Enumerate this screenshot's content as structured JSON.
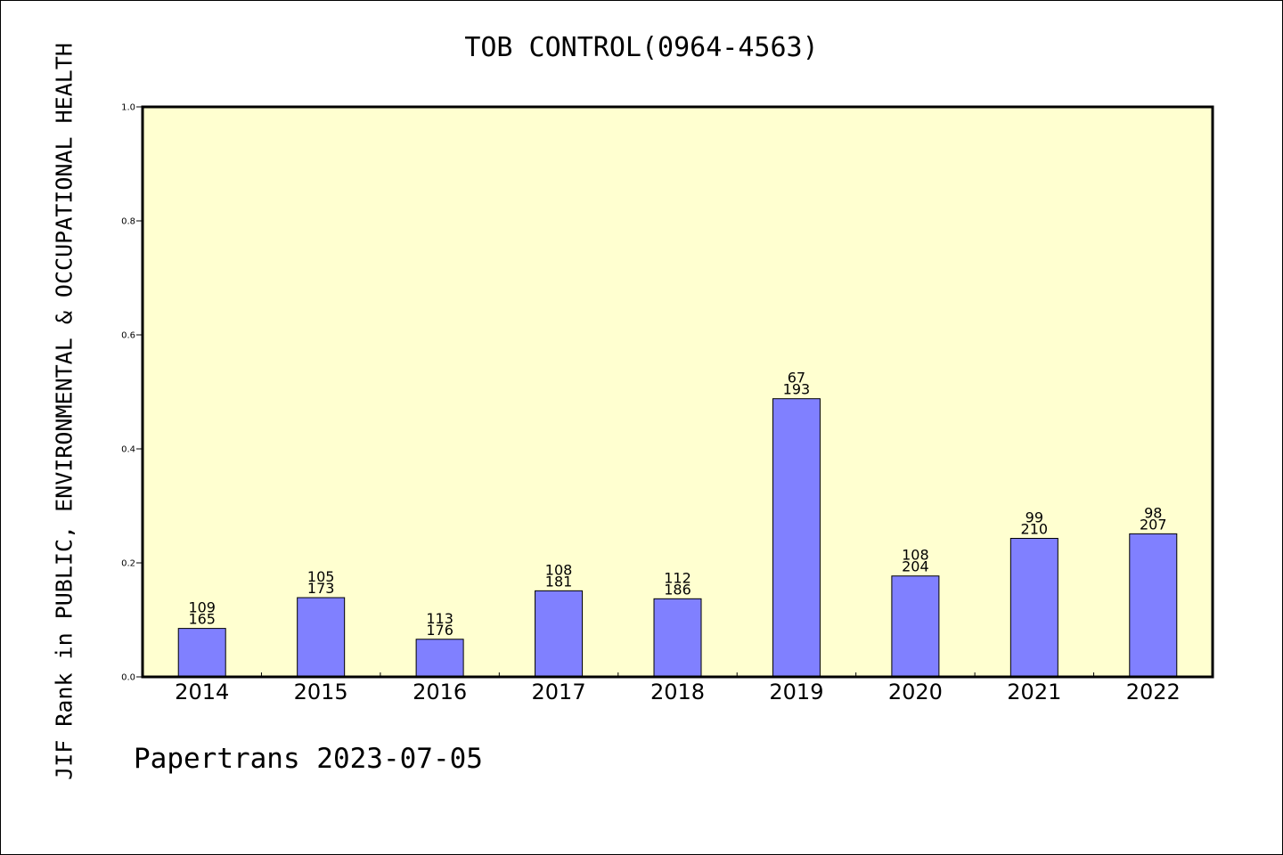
{
  "chart_data": {
    "type": "bar",
    "title": "TOB CONTROL(0964-4563)",
    "ylabel": "JIF Rank in PUBLIC, ENVIRONMENTAL & OCCUPATIONAL HEALTH",
    "xlabel": "",
    "ylim": [
      0,
      1.0
    ],
    "yticks": [
      "0.0",
      "0.2",
      "0.4",
      "0.6",
      "0.8",
      "1.0"
    ],
    "categories": [
      "2014",
      "2015",
      "2016",
      "2017",
      "2018",
      "2019",
      "2020",
      "2021",
      "2022"
    ],
    "values": [
      0.085,
      0.139,
      0.066,
      0.151,
      0.137,
      0.488,
      0.177,
      0.243,
      0.251
    ],
    "ranks": [
      "109",
      "105",
      "113",
      "108",
      "112",
      "67",
      "108",
      "99",
      "98"
    ],
    "totals": [
      "165",
      "173",
      "176",
      "181",
      "186",
      "193",
      "204",
      "210",
      "207"
    ],
    "bar_color": "#8080ff",
    "plot_bg": "#ffffd0",
    "grid": false
  },
  "footer": "Papertrans 2023-07-05"
}
